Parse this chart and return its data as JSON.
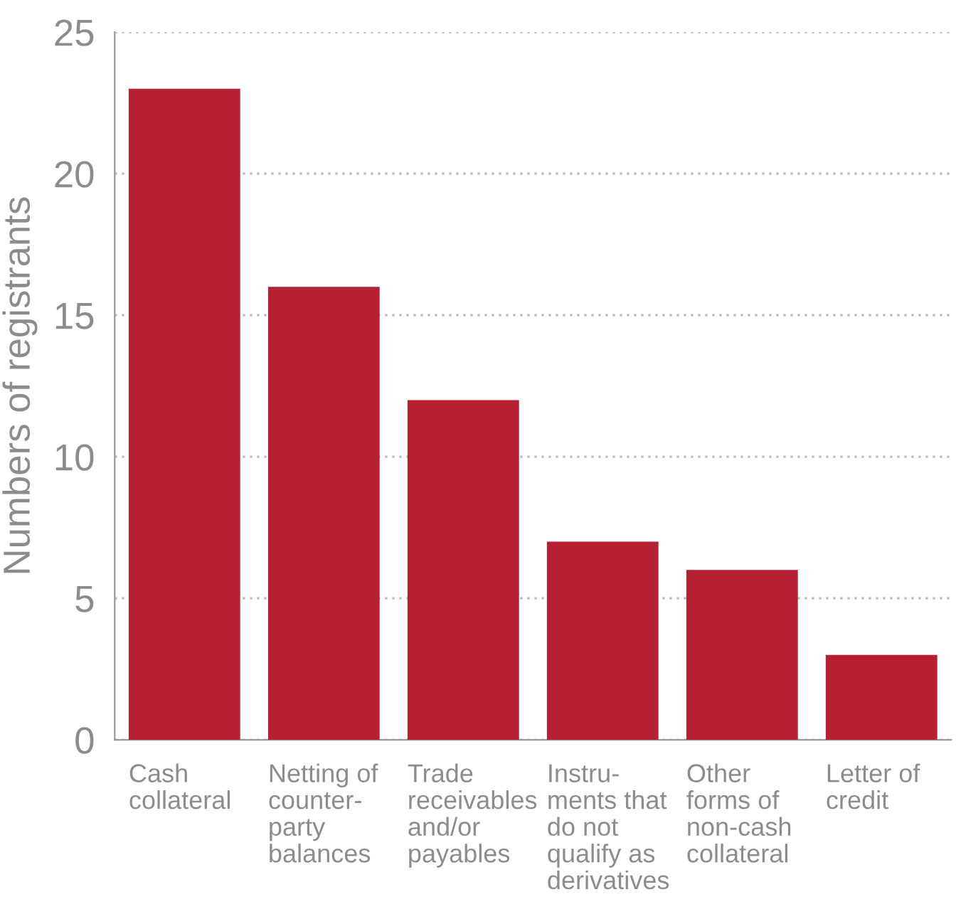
{
  "chart_data": {
    "type": "bar",
    "ylabel": "Numbers of registrants",
    "categories": [
      "Cash\ncollateral",
      "Netting of\ncounter-\nparty\nbalances",
      "Trade\nreceivables\nand/or\npayables",
      "Instru-\nments that\ndo not\nqualify as\nderivatives",
      "Other\nforms of\nnon-cash\ncollateral",
      "Letter of\ncredit"
    ],
    "values": [
      23,
      16,
      12,
      7,
      6,
      3
    ],
    "color": "#b71f33",
    "ylim": [
      0,
      25
    ],
    "yticks": [
      0,
      5,
      10,
      15,
      20,
      25
    ],
    "grid": "y"
  }
}
